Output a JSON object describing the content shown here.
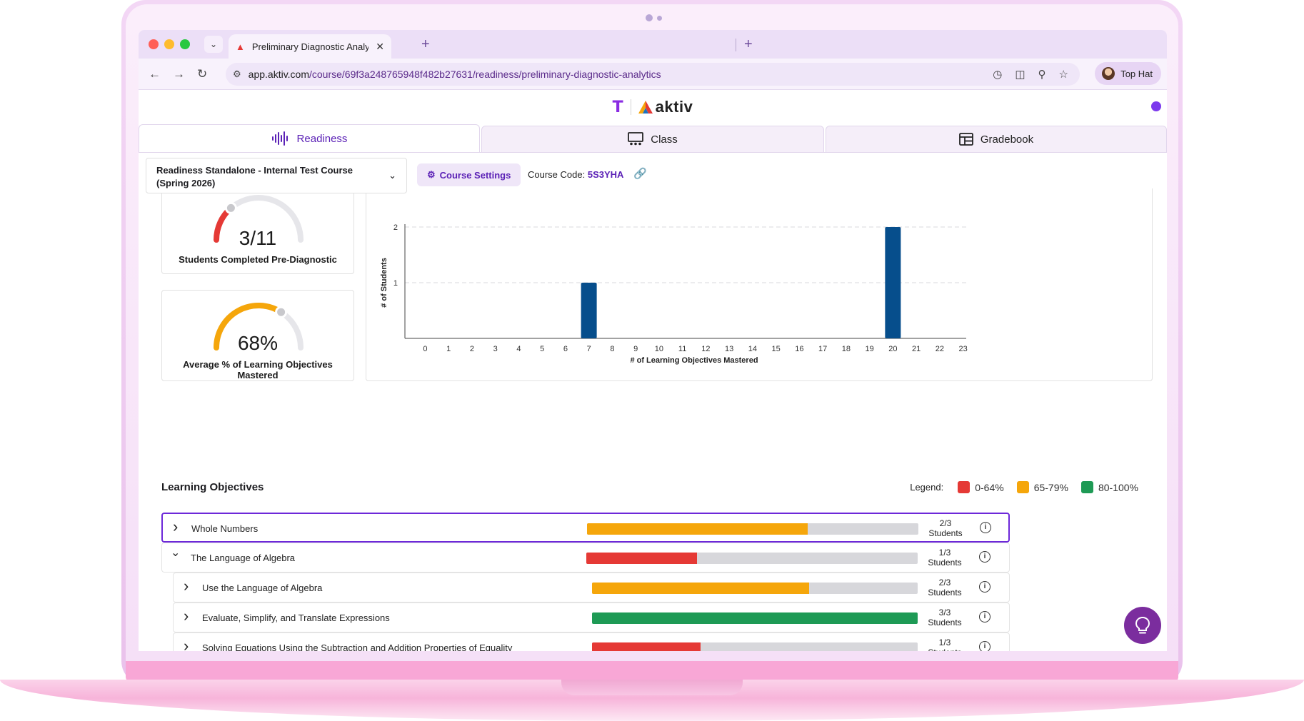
{
  "browser": {
    "tab_title": "Preliminary Diagnostic Analytics",
    "url_host": "app.aktiv.com",
    "url_path": "/course/69f3a248765948f482b27631/readiness/preliminary-diagnostic-analytics",
    "profile_name": "Top Hat"
  },
  "app": {
    "logo_t": "T",
    "logo_name": "aktiv",
    "tabs": [
      {
        "label": "Readiness",
        "icon": "waveform-icon"
      },
      {
        "label": "Class",
        "icon": "classroom-icon"
      },
      {
        "label": "Gradebook",
        "icon": "table-icon"
      }
    ],
    "course_select": "Readiness Standalone - Internal Test Course (Spring 2026)",
    "course_settings": "Course Settings",
    "course_code_label": "Course Code:",
    "course_code": "5S3YHA"
  },
  "gauges": [
    {
      "value": "3/11",
      "fraction": 0.2727,
      "label": "Students Completed Pre-Diagnostic",
      "color": "#e53935"
    },
    {
      "value": "68%",
      "fraction": 0.68,
      "label": "Average % of Learning Objectives Mastered",
      "color": "#f5a60b"
    }
  ],
  "chart_data": {
    "type": "bar",
    "categories": [
      "0",
      "1",
      "2",
      "3",
      "4",
      "5",
      "6",
      "7",
      "8",
      "9",
      "10",
      "11",
      "12",
      "13",
      "14",
      "15",
      "16",
      "17",
      "18",
      "19",
      "20",
      "21",
      "22",
      "23"
    ],
    "values": [
      0,
      0,
      0,
      0,
      0,
      0,
      0,
      1,
      0,
      0,
      0,
      0,
      0,
      0,
      0,
      0,
      0,
      0,
      0,
      0,
      2,
      0,
      0,
      0
    ],
    "xlabel": "# of Learning Objectives Mastered",
    "ylabel": "# of Students",
    "yticks": [
      "1",
      "2"
    ],
    "ylim": [
      0,
      2
    ],
    "bar_color": "#064e8c",
    "grid": "dashed horizontal"
  },
  "learning_objectives": {
    "title": "Learning Objectives",
    "legend_label": "Legend:",
    "legend": [
      {
        "label": "0-64%",
        "color": "#e53935"
      },
      {
        "label": "65-79%",
        "color": "#f5a60b"
      },
      {
        "label": "80-100%",
        "color": "#1e9a55"
      }
    ],
    "rows": [
      {
        "name": "Whole Numbers",
        "ratio": "2/3",
        "unit": "Students",
        "fraction": 0.667,
        "color": "#f5a60b",
        "expanded": false,
        "level": 0
      },
      {
        "name": "The Language of Algebra",
        "ratio": "1/3",
        "unit": "Students",
        "fraction": 0.333,
        "color": "#e53935",
        "expanded": true,
        "level": 0
      },
      {
        "name": "Use the Language of Algebra",
        "ratio": "2/3",
        "unit": "Students",
        "fraction": 0.667,
        "color": "#f5a60b",
        "expanded": false,
        "level": 1
      },
      {
        "name": "Evaluate, Simplify, and Translate Expressions",
        "ratio": "3/3",
        "unit": "Students",
        "fraction": 1.0,
        "color": "#1e9a55",
        "expanded": false,
        "level": 1
      },
      {
        "name": "Solving Equations Using the Subtraction and Addition Properties of Equality",
        "ratio": "1/3",
        "unit": "Students",
        "fraction": 0.333,
        "color": "#e53935",
        "expanded": false,
        "level": 1
      }
    ]
  }
}
